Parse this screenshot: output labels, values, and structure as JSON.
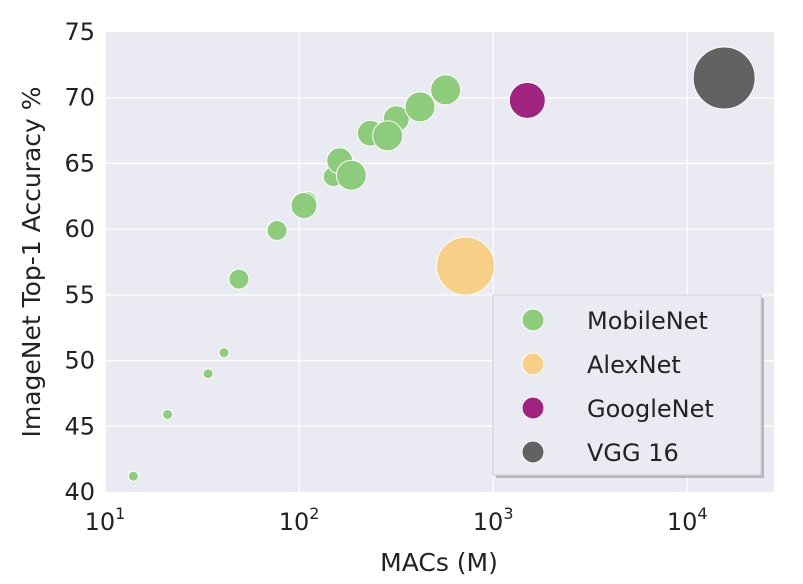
{
  "chart_data": {
    "type": "scatter",
    "x_scale": "log",
    "xlabel": "MACs (M)",
    "ylabel": "ImageNet Top-1 Accuracy %",
    "xlim": [
      10,
      28000
    ],
    "ylim": [
      40,
      75
    ],
    "x_ticks": [
      {
        "value": 10,
        "base": "10",
        "exp": "1"
      },
      {
        "value": 100,
        "base": "10",
        "exp": "2"
      },
      {
        "value": 1000,
        "base": "10",
        "exp": "3"
      },
      {
        "value": 10000,
        "base": "10",
        "exp": "4"
      }
    ],
    "y_ticks": [
      40,
      45,
      50,
      55,
      60,
      65,
      70,
      75
    ],
    "grid": true,
    "legend_position": "bottom-right",
    "series": [
      {
        "name": "MobileNet",
        "color": "#8dcc7a",
        "points": [
          {
            "x": 14,
            "y": 41.2,
            "size": 10
          },
          {
            "x": 21,
            "y": 45.9,
            "size": 10
          },
          {
            "x": 34,
            "y": 49.0,
            "size": 10
          },
          {
            "x": 41,
            "y": 50.6,
            "size": 10
          },
          {
            "x": 49,
            "y": 56.2,
            "size": 20
          },
          {
            "x": 77,
            "y": 59.9,
            "size": 20
          },
          {
            "x": 110,
            "y": 62.1,
            "size": 20
          },
          {
            "x": 106,
            "y": 61.8,
            "size": 26
          },
          {
            "x": 150,
            "y": 64.0,
            "size": 20
          },
          {
            "x": 162,
            "y": 65.2,
            "size": 26
          },
          {
            "x": 186,
            "y": 64.1,
            "size": 30
          },
          {
            "x": 233,
            "y": 67.3,
            "size": 26
          },
          {
            "x": 317,
            "y": 68.4,
            "size": 26
          },
          {
            "x": 286,
            "y": 67.1,
            "size": 30
          },
          {
            "x": 420,
            "y": 69.3,
            "size": 30
          },
          {
            "x": 569,
            "y": 70.6,
            "size": 30
          }
        ]
      },
      {
        "name": "AlexNet",
        "color": "#f8cf86",
        "points": [
          {
            "x": 720,
            "y": 57.2,
            "size": 58
          }
        ]
      },
      {
        "name": "GoogleNet",
        "color": "#a12380",
        "points": [
          {
            "x": 1500,
            "y": 69.8,
            "size": 36
          }
        ]
      },
      {
        "name": "VGG 16",
        "color": "#626262",
        "points": [
          {
            "x": 15500,
            "y": 71.5,
            "size": 62
          }
        ]
      }
    ]
  }
}
